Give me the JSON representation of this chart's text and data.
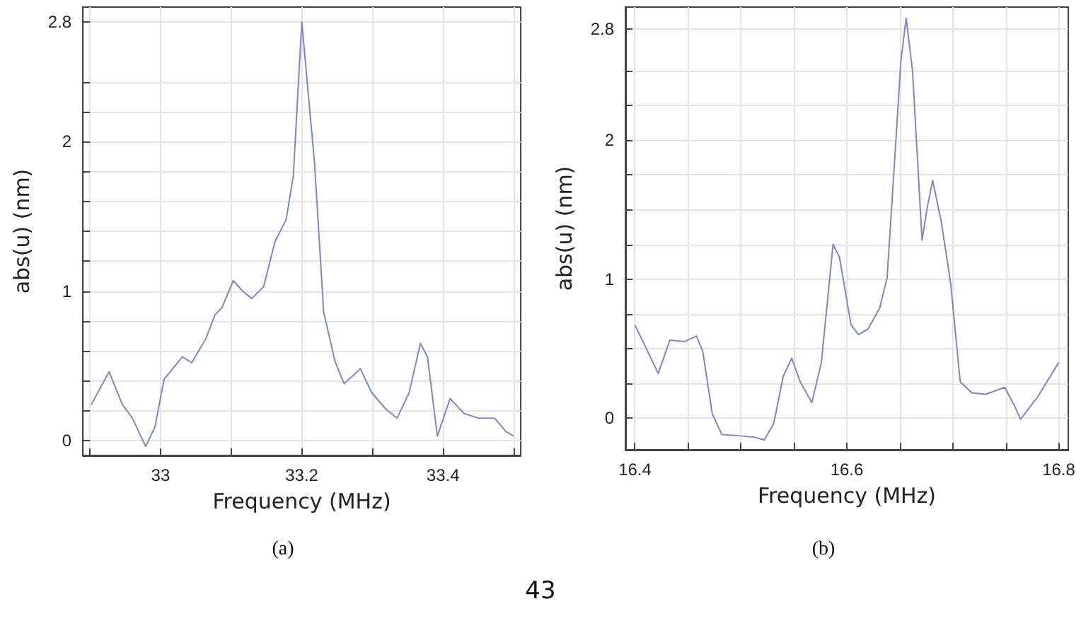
{
  "chart_data": [
    {
      "type": "line",
      "xlabel": "Frequency (MHz)",
      "ylabel": "abs(u) (nm)",
      "annotations": [
        "(a)"
      ],
      "xlim": [
        32.89,
        33.51
      ],
      "ylim": [
        -0.1,
        2.9
      ],
      "xticks": [
        {
          "value": 32.9,
          "label": null
        },
        33,
        {
          "value": 33.1,
          "label": null
        },
        33.2,
        {
          "value": 33.3,
          "label": null
        },
        33.4,
        {
          "value": 33.5,
          "label": null
        }
      ],
      "yticks": [
        0,
        {
          "value": 0.2,
          "label": null
        },
        {
          "value": 0.4,
          "label": null
        },
        {
          "value": 0.6,
          "label": null
        },
        {
          "value": 0.8,
          "label": null
        },
        1,
        {
          "value": 1.2,
          "label": null
        },
        {
          "value": 1.4,
          "label": null
        },
        {
          "value": 1.6,
          "label": null
        },
        {
          "value": 1.8,
          "label": null
        },
        2,
        {
          "value": 2.2,
          "label": null
        },
        {
          "value": 2.4,
          "label": null
        },
        2.8
      ],
      "grid": true,
      "marker": "none",
      "line_style": "solid",
      "series": [
        {
          "color": "#7f86c8",
          "x": [
            32.902,
            32.927,
            32.946,
            32.96,
            32.979,
            32.992,
            33.005,
            33.031,
            33.044,
            33.064,
            33.077,
            33.087,
            33.103,
            33.116,
            33.129,
            33.146,
            33.162,
            33.178,
            33.188,
            33.2,
            33.218,
            33.231,
            33.247,
            33.26,
            33.283,
            33.299,
            33.319,
            33.335,
            33.352,
            33.368,
            33.378,
            33.392,
            33.41,
            33.43,
            33.45,
            33.473,
            33.489,
            33.5
          ],
          "values": [
            0.24,
            0.46,
            0.24,
            0.15,
            -0.04,
            0.09,
            0.41,
            0.56,
            0.52,
            0.68,
            0.84,
            0.89,
            1.07,
            1.0,
            0.95,
            1.03,
            1.33,
            1.48,
            1.77,
            2.8,
            1.86,
            0.86,
            0.53,
            0.38,
            0.48,
            0.32,
            0.21,
            0.15,
            0.32,
            0.65,
            0.56,
            0.03,
            0.28,
            0.18,
            0.15,
            0.15,
            0.06,
            0.03
          ]
        }
      ]
    },
    {
      "type": "line",
      "xlabel": "Frequency (MHz)",
      "ylabel": "abs(u) (nm)",
      "annotations": [
        "(b)",
        "43"
      ],
      "xlim": [
        16.391,
        16.809
      ],
      "ylim": [
        -0.23,
        2.96
      ],
      "xticks": [
        16.4,
        {
          "value": 16.45,
          "label": null
        },
        {
          "value": 16.5,
          "label": null
        },
        {
          "value": 16.55,
          "label": null
        },
        16.6,
        {
          "value": 16.65,
          "label": null
        },
        {
          "value": 16.7,
          "label": null
        },
        {
          "value": 16.75,
          "label": null
        },
        16.8
      ],
      "yticks": [
        0,
        {
          "value": 0.25,
          "label": null
        },
        {
          "value": 0.5,
          "label": null
        },
        {
          "value": 0.75,
          "label": null
        },
        1,
        {
          "value": 1.25,
          "label": null
        },
        {
          "value": 1.5,
          "label": null
        },
        {
          "value": 1.75,
          "label": null
        },
        2,
        {
          "value": 2.25,
          "label": null
        },
        {
          "value": 2.5,
          "label": null
        },
        2.8
      ],
      "grid": true,
      "marker": "none",
      "line_style": "solid",
      "series": [
        {
          "color": "#7f86c8",
          "x": [
            16.4,
            16.422,
            16.433,
            16.447,
            16.458,
            16.464,
            16.473,
            16.482,
            16.5,
            16.513,
            16.522,
            16.531,
            16.54,
            16.548,
            16.556,
            16.567,
            16.576,
            16.587,
            16.593,
            16.604,
            16.611,
            16.62,
            16.631,
            16.638,
            16.644,
            16.651,
            16.656,
            16.662,
            16.671,
            16.676,
            16.681,
            16.689,
            16.698,
            16.707,
            16.718,
            16.731,
            16.749,
            16.758,
            16.764,
            16.78,
            16.8
          ],
          "values": [
            0.67,
            0.32,
            0.56,
            0.55,
            0.59,
            0.48,
            0.03,
            -0.12,
            -0.13,
            -0.14,
            -0.16,
            -0.04,
            0.3,
            0.43,
            0.26,
            0.11,
            0.4,
            1.25,
            1.16,
            0.67,
            0.6,
            0.64,
            0.79,
            1.01,
            1.72,
            2.57,
            2.88,
            2.5,
            1.28,
            1.52,
            1.71,
            1.42,
            0.97,
            0.26,
            0.18,
            0.17,
            0.22,
            0.09,
            -0.01,
            0.15,
            0.4
          ]
        }
      ]
    }
  ]
}
